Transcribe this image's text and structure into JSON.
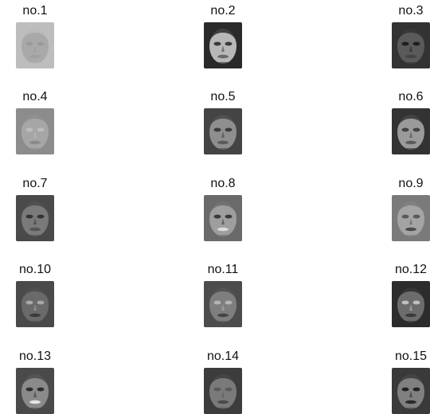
{
  "faces": [
    {
      "label": "no.1",
      "tone": "#a9a9a9",
      "hair": "#bdbdbd",
      "eyes": "#9a9a9a",
      "mouth": "#a0a0a0"
    },
    {
      "label": "no.2",
      "tone": "#b8b8b8",
      "hair": "#2a2a2a",
      "eyes": "#3a3a3a",
      "mouth": "#6a6a6a"
    },
    {
      "label": "no.3",
      "tone": "#5a5a5a",
      "hair": "#333333",
      "eyes": "#1e1e1e",
      "mouth": "#444444"
    },
    {
      "label": "no.4",
      "tone": "#a6a6a6",
      "hair": "#8c8c8c",
      "eyes": "#bdbdbd",
      "mouth": "#8a8a8a"
    },
    {
      "label": "no.5",
      "tone": "#8e8e8e",
      "hair": "#444444",
      "eyes": "#3c3c3c",
      "mouth": "#5a5a5a"
    },
    {
      "label": "no.6",
      "tone": "#9a9a9a",
      "hair": "#333333",
      "eyes": "#444444",
      "mouth": "#5c5c5c"
    },
    {
      "label": "no.7",
      "tone": "#7a7a7a",
      "hair": "#4a4a4a",
      "eyes": "#333333",
      "mouth": "#555555"
    },
    {
      "label": "no.8",
      "tone": "#9e9e9e",
      "hair": "#6a6a6a",
      "eyes": "#3a3a3a",
      "mouth": "#dcdcdc"
    },
    {
      "label": "no.9",
      "tone": "#a4a4a4",
      "hair": "#7a7a7a",
      "eyes": "#5a5a5a",
      "mouth": "#4a4a4a"
    },
    {
      "label": "no.10",
      "tone": "#6a6a6a",
      "hair": "#4a4a4a",
      "eyes": "#a8a8a8",
      "mouth": "#3a3a3a"
    },
    {
      "label": "no.11",
      "tone": "#7e7e7e",
      "hair": "#4c4c4c",
      "eyes": "#b4b4b4",
      "mouth": "#444444"
    },
    {
      "label": "no.12",
      "tone": "#6c6c6c",
      "hair": "#2c2c2c",
      "eyes": "#c0c0c0",
      "mouth": "#3a3a3a"
    },
    {
      "label": "no.13",
      "tone": "#8a8a8a",
      "hair": "#4a4a4a",
      "eyes": "#2e2e2e",
      "mouth": "#e4e4e4"
    },
    {
      "label": "no.14",
      "tone": "#7a7a7a",
      "hair": "#3c3c3c",
      "eyes": "#5a5a5a",
      "mouth": "#4a4a4a"
    },
    {
      "label": "no.15",
      "tone": "#808080",
      "hair": "#3a3a3a",
      "eyes": "#222222",
      "mouth": "#2a2a2a"
    }
  ]
}
